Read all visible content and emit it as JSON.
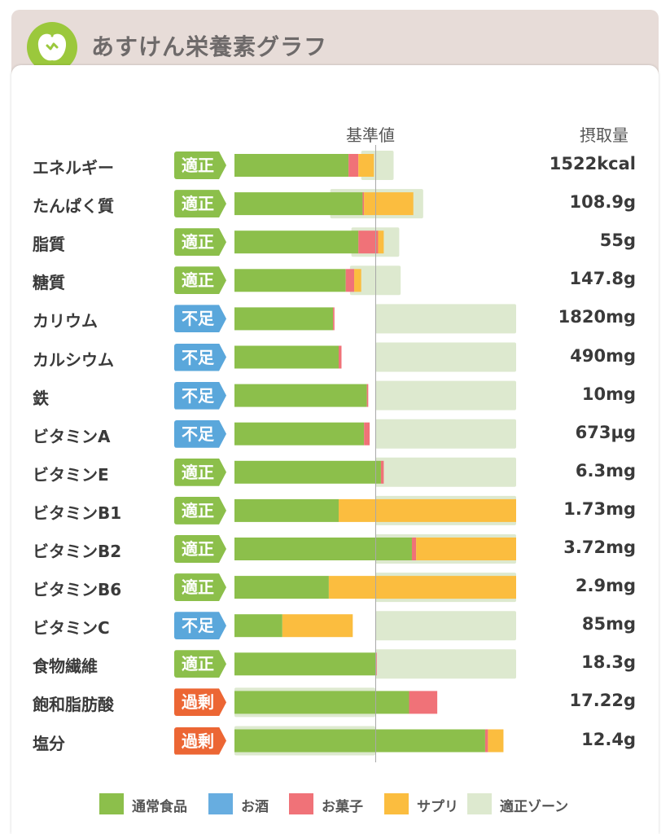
{
  "app": {
    "title": "あすけん栄養素グラフ",
    "logo_icon": "apple-icon"
  },
  "columns": {
    "reference": "基準値",
    "intake": "摂取量"
  },
  "colors": {
    "food": "#8cbf4b",
    "alcohol": "#67ade0",
    "snack": "#f07278",
    "supplement": "#fbbd3f",
    "zone": "#dde9cf",
    "ok_badge": "#8cbf4b",
    "low_badge": "#5aa7db",
    "over_badge": "#ec6634"
  },
  "legend": [
    {
      "key": "food",
      "label": "通常食品"
    },
    {
      "key": "alcohol",
      "label": "お酒"
    },
    {
      "key": "snack",
      "label": "お菓子"
    },
    {
      "key": "supplement",
      "label": "サプリ"
    },
    {
      "key": "zone",
      "label": "適正ゾーン"
    }
  ],
  "chart_data": {
    "type": "bar",
    "title": "あすけん栄養素グラフ",
    "xlabel": "基準値",
    "ylabel": "",
    "unit": "% of reference (基準値 = 100)",
    "categories": [
      "エネルギー",
      "たんぱく質",
      "脂質",
      "糖質",
      "カリウム",
      "カルシウム",
      "鉄",
      "ビタミンA",
      "ビタミンE",
      "ビタミンB1",
      "ビタミンB2",
      "ビタミンB6",
      "ビタミンC",
      "食物繊維",
      "飽和脂肪酸",
      "塩分"
    ],
    "status": [
      "適正",
      "適正",
      "適正",
      "適正",
      "不足",
      "不足",
      "不足",
      "不足",
      "適正",
      "適正",
      "適正",
      "適正",
      "不足",
      "適正",
      "過剰",
      "過剰"
    ],
    "intake": [
      "1522kcal",
      "108.9g",
      "55g",
      "147.8g",
      "1820mg",
      "490mg",
      "10mg",
      "673µg",
      "6.3mg",
      "1.73mg",
      "3.72mg",
      "2.9mg",
      "85mg",
      "18.3g",
      "17.22g",
      "12.4g"
    ],
    "series": [
      {
        "name": "通常食品",
        "key": "food",
        "values": [
          81,
          91,
          88,
          79,
          70,
          74,
          94,
          92,
          104,
          74,
          126,
          67,
          34,
          100,
          124,
          178
        ]
      },
      {
        "name": "お酒",
        "key": "alcohol",
        "values": [
          0,
          0,
          0,
          0,
          0,
          0,
          0,
          0,
          0,
          0,
          0,
          0,
          0,
          0,
          0,
          0
        ]
      },
      {
        "name": "お菓子",
        "key": "snack",
        "values": [
          7,
          1,
          14,
          6,
          1,
          2,
          1,
          4,
          2,
          0,
          3,
          0,
          0,
          1,
          20,
          2
        ]
      },
      {
        "name": "サプリ",
        "key": "supplement",
        "values": [
          11,
          35,
          4,
          5,
          0,
          0,
          0,
          0,
          0,
          126,
          71,
          133,
          50,
          0,
          0,
          11
        ]
      }
    ],
    "zone": [
      [
        90,
        113
      ],
      [
        68,
        134
      ],
      [
        83,
        117
      ],
      [
        82,
        118
      ],
      [
        100,
        200
      ],
      [
        100,
        200
      ],
      [
        100,
        200
      ],
      [
        100,
        200
      ],
      [
        100,
        200
      ],
      [
        100,
        200
      ],
      [
        100,
        200
      ],
      [
        100,
        200
      ],
      [
        100,
        200
      ],
      [
        100,
        200
      ],
      [
        0,
        100
      ],
      [
        0,
        100
      ]
    ],
    "xlim": [
      0,
      200
    ],
    "reference_line": 100,
    "grid": false,
    "legend": "bottom"
  }
}
